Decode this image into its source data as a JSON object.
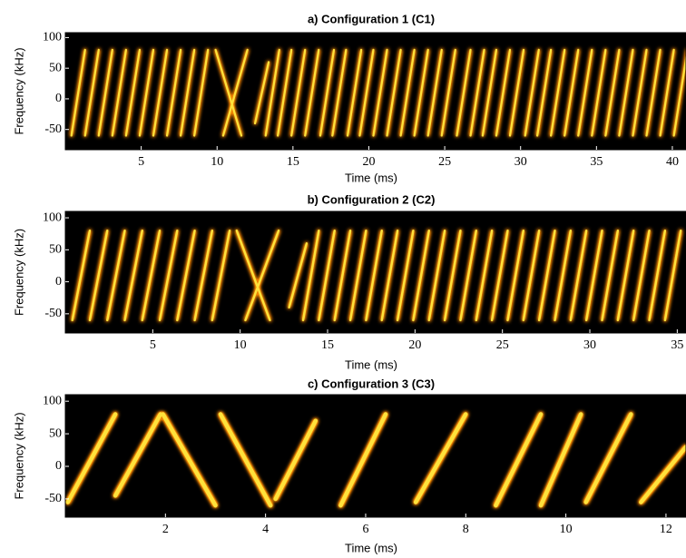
{
  "chart_data": [
    {
      "type": "spectrogram",
      "title": "a) Configuration 1 (C1)",
      "xlabel": "Time (ms)",
      "ylabel": "Frequency (kHz)",
      "xlim": [
        0,
        40.9
      ],
      "ylim": [
        -83,
        108
      ],
      "xticks": [
        5,
        10,
        15,
        20,
        25,
        30,
        35,
        40
      ],
      "yticks": [
        -50,
        0,
        50,
        100
      ],
      "color": "#ffe23a",
      "segments": [
        {
          "x": [
            0.4,
            1.3
          ],
          "y": [
            -60,
            80
          ]
        },
        {
          "x": [
            1.3,
            2.2
          ],
          "y": [
            -60,
            80
          ]
        },
        {
          "x": [
            2.2,
            3.1
          ],
          "y": [
            -60,
            80
          ]
        },
        {
          "x": [
            3.1,
            4.0
          ],
          "y": [
            -60,
            80
          ]
        },
        {
          "x": [
            4.0,
            4.9
          ],
          "y": [
            -60,
            80
          ]
        },
        {
          "x": [
            4.9,
            5.8
          ],
          "y": [
            -60,
            80
          ]
        },
        {
          "x": [
            5.8,
            6.7
          ],
          "y": [
            -60,
            80
          ]
        },
        {
          "x": [
            6.7,
            7.6
          ],
          "y": [
            -60,
            80
          ]
        },
        {
          "x": [
            7.6,
            8.5
          ],
          "y": [
            -60,
            80
          ]
        },
        {
          "x": [
            8.5,
            9.4
          ],
          "y": [
            -60,
            80
          ]
        },
        {
          "x": [
            9.9,
            11.6
          ],
          "y": [
            80,
            -60
          ]
        },
        {
          "x": [
            10.4,
            12.0
          ],
          "y": [
            -60,
            80
          ]
        },
        {
          "x": [
            12.5,
            13.4
          ],
          "y": [
            -40,
            60
          ]
        },
        {
          "x": [
            13.2,
            14.1
          ],
          "y": [
            -60,
            80
          ]
        },
        {
          "x": [
            14.0,
            14.9
          ],
          "y": [
            -60,
            80
          ]
        },
        {
          "x": [
            14.9,
            15.8
          ],
          "y": [
            -60,
            80
          ]
        },
        {
          "x": [
            15.8,
            16.7
          ],
          "y": [
            -60,
            80
          ]
        },
        {
          "x": [
            16.8,
            17.7
          ],
          "y": [
            -60,
            80
          ]
        },
        {
          "x": [
            17.6,
            18.5
          ],
          "y": [
            -60,
            80
          ]
        },
        {
          "x": [
            18.6,
            19.5
          ],
          "y": [
            -60,
            80
          ]
        },
        {
          "x": [
            19.4,
            20.3
          ],
          "y": [
            -60,
            80
          ]
        },
        {
          "x": [
            20.3,
            21.2
          ],
          "y": [
            -60,
            80
          ]
        },
        {
          "x": [
            21.2,
            22.1
          ],
          "y": [
            -60,
            80
          ]
        },
        {
          "x": [
            22.1,
            23.0
          ],
          "y": [
            -60,
            80
          ]
        },
        {
          "x": [
            23.0,
            23.9
          ],
          "y": [
            -60,
            80
          ]
        },
        {
          "x": [
            23.9,
            24.8
          ],
          "y": [
            -60,
            80
          ]
        },
        {
          "x": [
            24.8,
            25.7
          ],
          "y": [
            -60,
            80
          ]
        },
        {
          "x": [
            25.8,
            26.7
          ],
          "y": [
            -60,
            80
          ]
        },
        {
          "x": [
            26.7,
            27.6
          ],
          "y": [
            -60,
            80
          ]
        },
        {
          "x": [
            27.5,
            28.4
          ],
          "y": [
            -60,
            80
          ]
        },
        {
          "x": [
            28.4,
            29.3
          ],
          "y": [
            -60,
            80
          ]
        },
        {
          "x": [
            29.3,
            30.2
          ],
          "y": [
            -60,
            80
          ]
        },
        {
          "x": [
            30.3,
            31.2
          ],
          "y": [
            -60,
            80
          ]
        },
        {
          "x": [
            31.1,
            32.0
          ],
          "y": [
            -60,
            80
          ]
        },
        {
          "x": [
            32.0,
            32.9
          ],
          "y": [
            -60,
            80
          ]
        },
        {
          "x": [
            32.9,
            33.8
          ],
          "y": [
            -60,
            80
          ]
        },
        {
          "x": [
            33.8,
            34.7
          ],
          "y": [
            -60,
            80
          ]
        },
        {
          "x": [
            34.7,
            35.6
          ],
          "y": [
            -60,
            80
          ]
        },
        {
          "x": [
            35.6,
            36.5
          ],
          "y": [
            -60,
            80
          ]
        },
        {
          "x": [
            36.5,
            37.4
          ],
          "y": [
            -60,
            80
          ]
        },
        {
          "x": [
            37.4,
            38.3
          ],
          "y": [
            -60,
            80
          ]
        },
        {
          "x": [
            38.3,
            39.2
          ],
          "y": [
            -60,
            80
          ]
        },
        {
          "x": [
            39.2,
            40.1
          ],
          "y": [
            -60,
            80
          ]
        },
        {
          "x": [
            40.1,
            41.0
          ],
          "y": [
            -60,
            80
          ]
        }
      ]
    },
    {
      "type": "spectrogram",
      "title": "b) Configuration 2 (C2)",
      "xlabel": "Time (ms)",
      "ylabel": "Frequency (kHz)",
      "xlim": [
        0,
        35.5
      ],
      "ylim": [
        -80,
        110
      ],
      "xticks": [
        5,
        10,
        15,
        20,
        25,
        30,
        35
      ],
      "yticks": [
        -50,
        0,
        50,
        100
      ],
      "color": "#ffe23a",
      "segments": [
        {
          "x": [
            0.4,
            1.4
          ],
          "y": [
            -60,
            80
          ]
        },
        {
          "x": [
            1.4,
            2.4
          ],
          "y": [
            -60,
            80
          ]
        },
        {
          "x": [
            2.4,
            3.4
          ],
          "y": [
            -60,
            80
          ]
        },
        {
          "x": [
            3.4,
            4.4
          ],
          "y": [
            -60,
            80
          ]
        },
        {
          "x": [
            4.4,
            5.4
          ],
          "y": [
            -60,
            80
          ]
        },
        {
          "x": [
            5.4,
            6.4
          ],
          "y": [
            -60,
            80
          ]
        },
        {
          "x": [
            6.4,
            7.4
          ],
          "y": [
            -60,
            80
          ]
        },
        {
          "x": [
            7.4,
            8.4
          ],
          "y": [
            -60,
            80
          ]
        },
        {
          "x": [
            8.4,
            9.4
          ],
          "y": [
            -60,
            80
          ]
        },
        {
          "x": [
            9.8,
            11.7
          ],
          "y": [
            80,
            -60
          ]
        },
        {
          "x": [
            10.3,
            12.2
          ],
          "y": [
            -60,
            80
          ]
        },
        {
          "x": [
            12.8,
            13.8
          ],
          "y": [
            -40,
            60
          ]
        },
        {
          "x": [
            13.6,
            14.5
          ],
          "y": [
            -60,
            80
          ]
        },
        {
          "x": [
            14.5,
            15.4
          ],
          "y": [
            -60,
            80
          ]
        },
        {
          "x": [
            15.4,
            16.3
          ],
          "y": [
            -60,
            80
          ]
        },
        {
          "x": [
            16.3,
            17.2
          ],
          "y": [
            -60,
            80
          ]
        },
        {
          "x": [
            17.2,
            18.1
          ],
          "y": [
            -60,
            80
          ]
        },
        {
          "x": [
            18.1,
            19.0
          ],
          "y": [
            -60,
            80
          ]
        },
        {
          "x": [
            19.0,
            19.9
          ],
          "y": [
            -60,
            80
          ]
        },
        {
          "x": [
            19.9,
            20.8
          ],
          "y": [
            -60,
            80
          ]
        },
        {
          "x": [
            20.8,
            21.7
          ],
          "y": [
            -60,
            80
          ]
        },
        {
          "x": [
            21.7,
            22.6
          ],
          "y": [
            -60,
            80
          ]
        },
        {
          "x": [
            22.6,
            23.5
          ],
          "y": [
            -60,
            80
          ]
        },
        {
          "x": [
            23.5,
            24.4
          ],
          "y": [
            -60,
            80
          ]
        },
        {
          "x": [
            24.4,
            25.3
          ],
          "y": [
            -60,
            80
          ]
        },
        {
          "x": [
            25.3,
            26.2
          ],
          "y": [
            -60,
            80
          ]
        },
        {
          "x": [
            26.2,
            27.1
          ],
          "y": [
            -60,
            80
          ]
        },
        {
          "x": [
            27.1,
            28.0
          ],
          "y": [
            -60,
            80
          ]
        },
        {
          "x": [
            28.0,
            28.9
          ],
          "y": [
            -60,
            80
          ]
        },
        {
          "x": [
            28.9,
            29.8
          ],
          "y": [
            -60,
            80
          ]
        },
        {
          "x": [
            29.8,
            30.7
          ],
          "y": [
            -60,
            80
          ]
        },
        {
          "x": [
            30.7,
            31.6
          ],
          "y": [
            -60,
            80
          ]
        },
        {
          "x": [
            31.6,
            32.5
          ],
          "y": [
            -60,
            80
          ]
        },
        {
          "x": [
            32.5,
            33.4
          ],
          "y": [
            -60,
            80
          ]
        },
        {
          "x": [
            33.4,
            34.3
          ],
          "y": [
            -60,
            80
          ]
        },
        {
          "x": [
            34.3,
            35.2
          ],
          "y": [
            -60,
            80
          ]
        }
      ]
    },
    {
      "type": "spectrogram",
      "title": "c) Configuration 3 (C3)",
      "xlabel": "Time (ms)",
      "ylabel": "Frequency (kHz)",
      "xlim": [
        0,
        12.4
      ],
      "ylim": [
        -78,
        110
      ],
      "xticks": [
        2,
        4,
        6,
        8,
        10,
        12
      ],
      "yticks": [
        -50,
        0,
        50,
        100
      ],
      "color": "#ffe23a",
      "segments": [
        {
          "x": [
            0.05,
            1.0
          ],
          "y": [
            -55,
            80
          ]
        },
        {
          "x": [
            1.0,
            1.9
          ],
          "y": [
            -45,
            80
          ]
        },
        {
          "x": [
            1.95,
            3.0
          ],
          "y": [
            80,
            -60
          ]
        },
        {
          "x": [
            3.1,
            4.1
          ],
          "y": [
            80,
            -60
          ]
        },
        {
          "x": [
            4.2,
            5.0
          ],
          "y": [
            -50,
            70
          ]
        },
        {
          "x": [
            5.5,
            6.4
          ],
          "y": [
            -60,
            80
          ]
        },
        {
          "x": [
            7.0,
            8.0
          ],
          "y": [
            -55,
            80
          ]
        },
        {
          "x": [
            8.6,
            9.5
          ],
          "y": [
            -60,
            80
          ]
        },
        {
          "x": [
            9.5,
            10.3
          ],
          "y": [
            -60,
            80
          ]
        },
        {
          "x": [
            10.4,
            11.3
          ],
          "y": [
            -55,
            80
          ]
        },
        {
          "x": [
            11.5,
            12.4
          ],
          "y": [
            -55,
            30
          ]
        }
      ]
    }
  ]
}
